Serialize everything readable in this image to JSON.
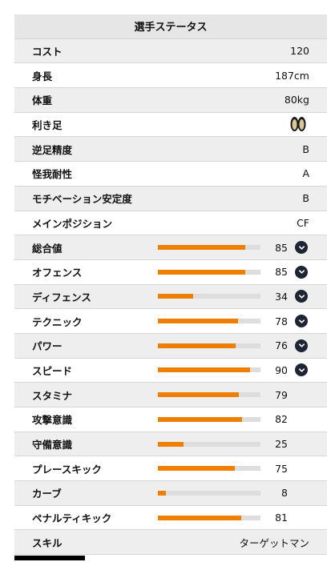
{
  "header": {
    "title": "選手ステータス"
  },
  "info_rows": [
    {
      "label": "コスト",
      "value": "120"
    },
    {
      "label": "身長",
      "value": "187cm"
    },
    {
      "label": "体重",
      "value": "80kg"
    },
    {
      "label": "利き足",
      "value": "",
      "icon": "feet-icon"
    },
    {
      "label": "逆足精度",
      "value": "B"
    },
    {
      "label": "怪我耐性",
      "value": "A"
    },
    {
      "label": "モチベーション安定度",
      "value": "B"
    },
    {
      "label": "メインポジション",
      "value": "CF"
    }
  ],
  "stat_rows": [
    {
      "label": "総合値",
      "value": 85,
      "expandable": true
    },
    {
      "label": "オフェンス",
      "value": 85,
      "expandable": true
    },
    {
      "label": "ディフェンス",
      "value": 34,
      "expandable": true
    },
    {
      "label": "テクニック",
      "value": 78,
      "expandable": true
    },
    {
      "label": "パワー",
      "value": 76,
      "expandable": true
    },
    {
      "label": "スピード",
      "value": 90,
      "expandable": true
    },
    {
      "label": "スタミナ",
      "value": 79,
      "expandable": false
    },
    {
      "label": "攻撃意識",
      "value": 82,
      "expandable": false
    },
    {
      "label": "守備意識",
      "value": 25,
      "expandable": false
    },
    {
      "label": "プレースキック",
      "value": 75,
      "expandable": false
    },
    {
      "label": "カーブ",
      "value": 8,
      "expandable": false
    },
    {
      "label": "ペナルティキック",
      "value": 81,
      "expandable": false
    }
  ],
  "skill_row": {
    "label": "スキル",
    "value": "ターゲットマン"
  },
  "colors": {
    "bar_fill": "#ef7f00",
    "bar_track": "#dddddd",
    "chevron_bg": "#1e2433",
    "row_shade": "#eeeeee"
  },
  "bar_max": 100
}
